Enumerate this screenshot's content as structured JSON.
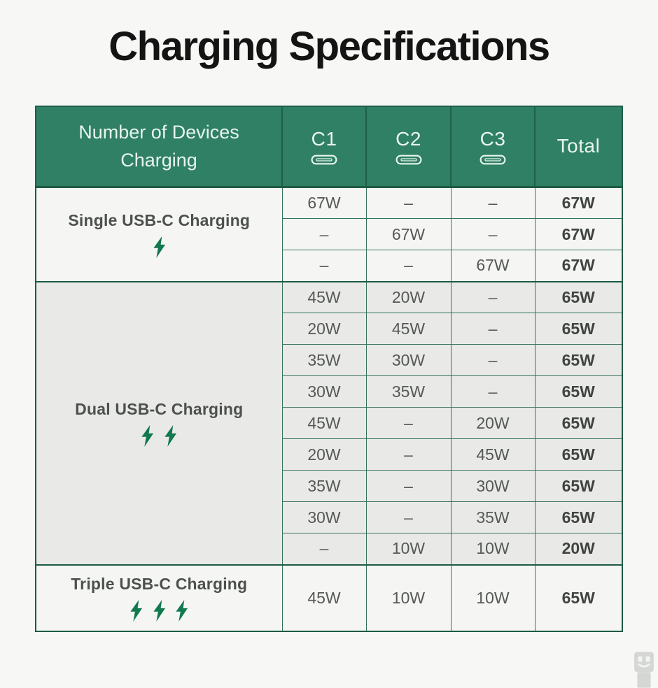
{
  "title": "Charging Specifications",
  "header": {
    "device_label": "Number of Devices Charging",
    "ports": [
      {
        "label": "C1",
        "icon": "usb-c-port-icon"
      },
      {
        "label": "C2",
        "icon": "usb-c-port-icon"
      },
      {
        "label": "C3",
        "icon": "usb-c-port-icon"
      }
    ],
    "total_label": "Total"
  },
  "sections": [
    {
      "label": "Single USB-C Charging",
      "bolts": 1,
      "rows": [
        [
          "67W",
          "–",
          "–",
          "67W"
        ],
        [
          "–",
          "67W",
          "–",
          "67W"
        ],
        [
          "–",
          "–",
          "67W",
          "67W"
        ]
      ]
    },
    {
      "label": "Dual USB-C Charging",
      "bolts": 2,
      "rows": [
        [
          "45W",
          "20W",
          "–",
          "65W"
        ],
        [
          "20W",
          "45W",
          "–",
          "65W"
        ],
        [
          "35W",
          "30W",
          "–",
          "65W"
        ],
        [
          "30W",
          "35W",
          "–",
          "65W"
        ],
        [
          "45W",
          "–",
          "20W",
          "65W"
        ],
        [
          "20W",
          "–",
          "45W",
          "65W"
        ],
        [
          "35W",
          "–",
          "30W",
          "65W"
        ],
        [
          "30W",
          "–",
          "35W",
          "65W"
        ],
        [
          "–",
          "10W",
          "10W",
          "20W"
        ]
      ]
    },
    {
      "label": "Triple USB-C Charging",
      "bolts": 3,
      "rows": [
        [
          "45W",
          "10W",
          "10W",
          "65W"
        ]
      ]
    }
  ],
  "icons": {
    "port": "usb-c-port-icon",
    "bolt": "lightning-bolt-icon",
    "watermark": "usb-plug-icon"
  },
  "colors": {
    "page_bg": "#f7f7f5",
    "title_text": "#141414",
    "header_bg": "#2f8065",
    "header_text": "#e9f5ee",
    "header_divider": "#1e6049",
    "border_dark": "#1d5b44",
    "border_inner": "#36735b",
    "row_light_bg": "#f5f6f3",
    "row_dual_bg": "#e9eae7",
    "cell_text": "#545856",
    "total_text": "#3f4442",
    "label_text": "#4c504e",
    "bolt_green": "#12784e",
    "watermark_gray": "#d5d7d4"
  },
  "chart_data": {
    "type": "table",
    "title": "Charging Specifications",
    "columns": [
      "Number of Devices Charging",
      "C1",
      "C2",
      "C3",
      "Total"
    ],
    "rows": [
      [
        "Single USB-C Charging",
        "67W",
        "–",
        "–",
        "67W"
      ],
      [
        "Single USB-C Charging",
        "–",
        "67W",
        "–",
        "67W"
      ],
      [
        "Single USB-C Charging",
        "–",
        "–",
        "67W",
        "67W"
      ],
      [
        "Dual USB-C Charging",
        "45W",
        "20W",
        "–",
        "65W"
      ],
      [
        "Dual USB-C Charging",
        "20W",
        "45W",
        "–",
        "65W"
      ],
      [
        "Dual USB-C Charging",
        "35W",
        "30W",
        "–",
        "65W"
      ],
      [
        "Dual USB-C Charging",
        "30W",
        "35W",
        "–",
        "65W"
      ],
      [
        "Dual USB-C Charging",
        "45W",
        "–",
        "20W",
        "65W"
      ],
      [
        "Dual USB-C Charging",
        "20W",
        "–",
        "45W",
        "65W"
      ],
      [
        "Dual USB-C Charging",
        "35W",
        "–",
        "30W",
        "65W"
      ],
      [
        "Dual USB-C Charging",
        "30W",
        "–",
        "35W",
        "65W"
      ],
      [
        "Dual USB-C Charging",
        "–",
        "10W",
        "10W",
        "20W"
      ],
      [
        "Triple USB-C Charging",
        "45W",
        "10W",
        "10W",
        "65W"
      ]
    ]
  }
}
